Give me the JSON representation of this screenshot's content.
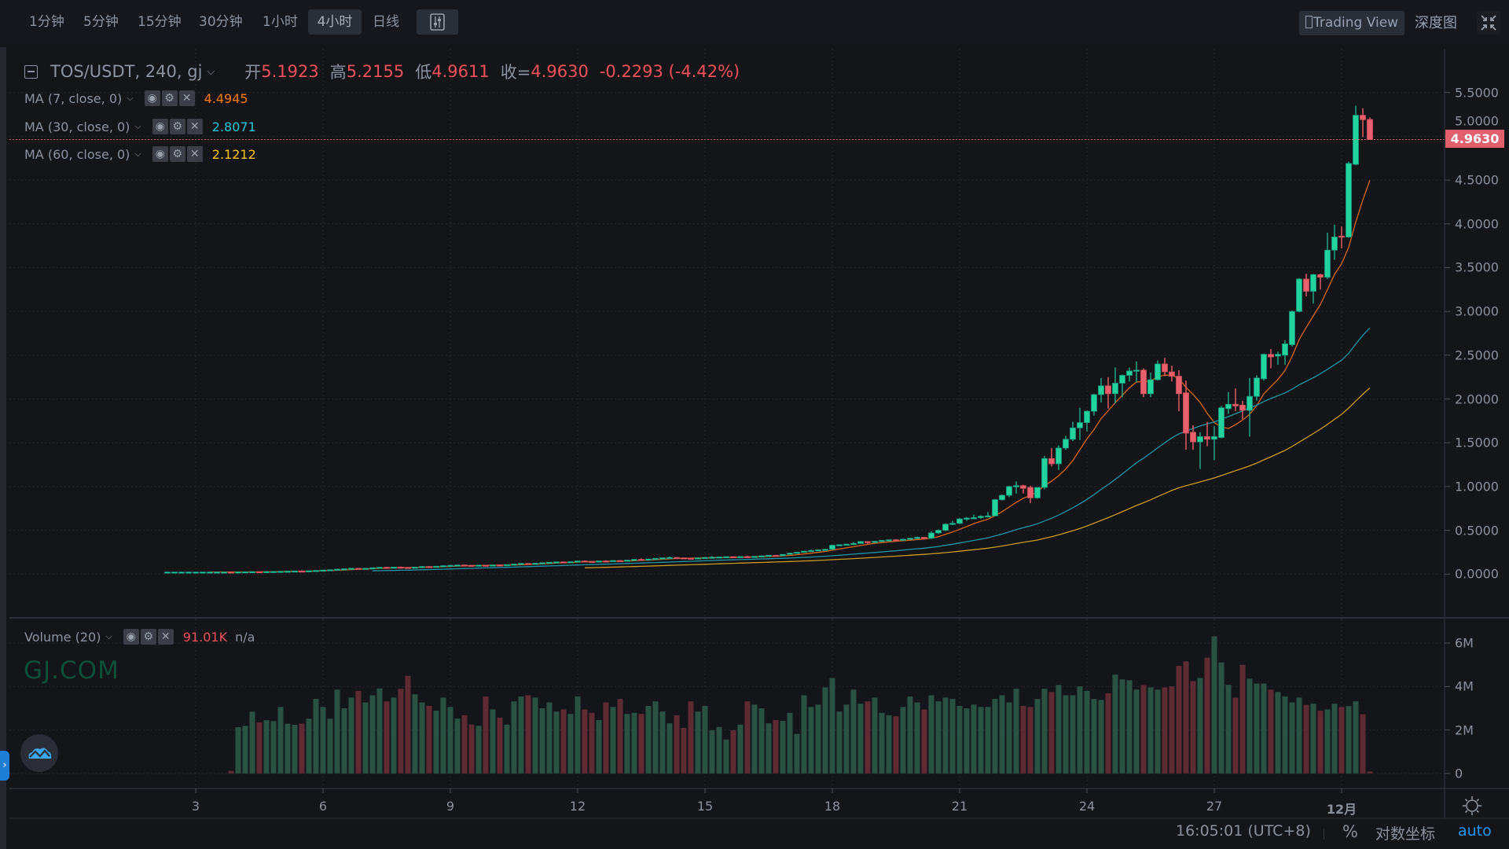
{
  "toolbar": {
    "intervals": [
      {
        "label": "1分钟"
      },
      {
        "label": "5分钟"
      },
      {
        "label": "15分钟"
      },
      {
        "label": "30分钟"
      },
      {
        "label": "1小时"
      },
      {
        "label": "4小时",
        "active": true
      },
      {
        "label": "日线"
      }
    ],
    "indicator_icon": "indicator-settings-icon",
    "tradingview_label": "Trading View",
    "depth_label": "深度图",
    "fullscreen_icon": "exit-fullscreen-icon"
  },
  "legend": {
    "symbol": "TOS/USDT, 240, gj",
    "open_label": "开",
    "open": "5.1923",
    "high_label": "高",
    "high": "5.2155",
    "low_label": "低",
    "low": "4.9611",
    "close_label": "收=",
    "close": "4.9630",
    "change": "-0.2293 (-4.42%)"
  },
  "indicators": [
    {
      "label": "MA (7, close, 0)",
      "value": "4.4945",
      "color": "#ff7a0e",
      "line_color": "#d9661a"
    },
    {
      "label": "MA (30, close, 0)",
      "value": "2.8071",
      "color": "#26c6da",
      "line_color": "#1e95a6"
    },
    {
      "label": "MA (60, close, 0)",
      "value": "2.1212",
      "color": "#ffc21a",
      "line_color": "#c99a22"
    }
  ],
  "volume_legend": {
    "label": "Volume (20)",
    "value": "91.01K",
    "value2": "n/a"
  },
  "watermark": "GJ.COM",
  "price_axis": {
    "ticks": [
      "5.5000",
      "5.0000",
      "4.5000",
      "4.0000",
      "3.5000",
      "3.0000",
      "2.5000",
      "2.0000",
      "1.5000",
      "1.0000",
      "0.5000",
      "0.0000"
    ],
    "last_price": "4.9630"
  },
  "volume_axis": [
    {
      "label": "6M",
      "value": 6
    },
    {
      "label": "4M",
      "value": 4
    },
    {
      "label": "2M",
      "value": 2
    },
    {
      "label": "0",
      "value": 0
    }
  ],
  "time_axis": [
    "3",
    "6",
    "9",
    "12",
    "15",
    "18",
    "21",
    "24",
    "27",
    "12月"
  ],
  "status_bar": {
    "time": "16:05:01 (UTC+8)",
    "percent": "%",
    "log_scale": "对数坐标",
    "auto": "auto"
  },
  "colors": {
    "up": "#22d39b",
    "down": "#e8606d",
    "volume_up": "#2a5243",
    "volume_down": "#5e2a33",
    "last_price": "#e0606e",
    "auto": "#2196f3",
    "watermark": "#0e4f38"
  },
  "chart_data": {
    "type": "candlestick",
    "x_ticks": [
      "3",
      "6",
      "9",
      "12",
      "15",
      "18",
      "21",
      "24",
      "27",
      "12月"
    ],
    "ylim": [
      -0.5,
      6.0
    ],
    "volume_ylim": [
      -0.69,
      7.16
    ],
    "grid": true,
    "candles": [
      [
        0.024,
        0.026,
        0.022,
        0.024
      ],
      [
        0.024,
        0.026,
        0.022,
        0.024
      ],
      [
        0.024,
        0.026,
        0.022,
        0.024
      ],
      [
        0.024,
        0.026,
        0.022,
        0.024
      ],
      [
        0.024,
        0.026,
        0.022,
        0.024
      ],
      [
        0.024,
        0.026,
        0.022,
        0.024
      ],
      [
        0.024,
        0.026,
        0.022,
        0.024
      ],
      [
        0.024,
        0.026,
        0.022,
        0.024
      ],
      [
        0.024,
        0.026,
        0.022,
        0.024
      ],
      [
        0.024,
        0.026,
        0.021,
        0.023
      ],
      [
        0.023,
        0.027,
        0.021,
        0.025
      ],
      [
        0.025,
        0.028,
        0.023,
        0.026
      ],
      [
        0.026,
        0.03,
        0.024,
        0.028
      ],
      [
        0.028,
        0.03,
        0.025,
        0.027
      ],
      [
        0.027,
        0.031,
        0.025,
        0.029
      ],
      [
        0.029,
        0.033,
        0.027,
        0.03
      ],
      [
        0.03,
        0.035,
        0.028,
        0.032
      ],
      [
        0.032,
        0.04,
        0.03,
        0.034
      ],
      [
        0.034,
        0.039,
        0.032,
        0.036
      ],
      [
        0.036,
        0.044,
        0.033,
        0.035
      ],
      [
        0.035,
        0.04,
        0.033,
        0.038
      ],
      [
        0.038,
        0.044,
        0.036,
        0.042
      ],
      [
        0.042,
        0.048,
        0.04,
        0.046
      ],
      [
        0.046,
        0.052,
        0.044,
        0.05
      ],
      [
        0.05,
        0.058,
        0.048,
        0.056
      ],
      [
        0.056,
        0.063,
        0.054,
        0.061
      ],
      [
        0.061,
        0.068,
        0.059,
        0.066
      ],
      [
        0.066,
        0.069,
        0.059,
        0.062
      ],
      [
        0.062,
        0.068,
        0.06,
        0.066
      ],
      [
        0.066,
        0.075,
        0.064,
        0.072
      ],
      [
        0.072,
        0.08,
        0.07,
        0.078
      ],
      [
        0.078,
        0.084,
        0.072,
        0.075
      ],
      [
        0.075,
        0.083,
        0.073,
        0.08
      ],
      [
        0.08,
        0.086,
        0.074,
        0.077
      ],
      [
        0.077,
        0.079,
        0.069,
        0.072
      ],
      [
        0.072,
        0.082,
        0.07,
        0.08
      ],
      [
        0.08,
        0.09,
        0.078,
        0.087
      ],
      [
        0.087,
        0.09,
        0.081,
        0.084
      ],
      [
        0.084,
        0.093,
        0.082,
        0.09
      ],
      [
        0.09,
        0.099,
        0.088,
        0.096
      ],
      [
        0.096,
        0.104,
        0.094,
        0.1
      ],
      [
        0.1,
        0.107,
        0.098,
        0.104
      ],
      [
        0.104,
        0.107,
        0.098,
        0.101
      ],
      [
        0.101,
        0.103,
        0.094,
        0.097
      ],
      [
        0.097,
        0.105,
        0.095,
        0.102
      ],
      [
        0.102,
        0.106,
        0.096,
        0.099
      ],
      [
        0.099,
        0.108,
        0.097,
        0.105
      ],
      [
        0.105,
        0.109,
        0.099,
        0.102
      ],
      [
        0.102,
        0.111,
        0.1,
        0.108
      ],
      [
        0.108,
        0.118,
        0.106,
        0.115
      ],
      [
        0.115,
        0.125,
        0.113,
        0.122
      ],
      [
        0.122,
        0.126,
        0.115,
        0.118
      ],
      [
        0.118,
        0.127,
        0.116,
        0.124
      ],
      [
        0.124,
        0.133,
        0.122,
        0.13
      ],
      [
        0.13,
        0.138,
        0.128,
        0.135
      ],
      [
        0.135,
        0.143,
        0.133,
        0.14
      ],
      [
        0.14,
        0.144,
        0.133,
        0.136
      ],
      [
        0.136,
        0.145,
        0.134,
        0.142
      ],
      [
        0.142,
        0.153,
        0.14,
        0.15
      ],
      [
        0.15,
        0.154,
        0.143,
        0.146
      ],
      [
        0.146,
        0.149,
        0.139,
        0.142
      ],
      [
        0.142,
        0.153,
        0.14,
        0.15
      ],
      [
        0.15,
        0.158,
        0.143,
        0.146
      ],
      [
        0.146,
        0.158,
        0.144,
        0.155
      ],
      [
        0.155,
        0.16,
        0.147,
        0.15
      ],
      [
        0.15,
        0.163,
        0.148,
        0.16
      ],
      [
        0.16,
        0.172,
        0.158,
        0.168
      ],
      [
        0.168,
        0.18,
        0.161,
        0.164
      ],
      [
        0.164,
        0.175,
        0.162,
        0.172
      ],
      [
        0.172,
        0.184,
        0.17,
        0.18
      ],
      [
        0.18,
        0.19,
        0.178,
        0.186
      ],
      [
        0.186,
        0.2,
        0.184,
        0.19
      ],
      [
        0.19,
        0.194,
        0.183,
        0.186
      ],
      [
        0.186,
        0.189,
        0.179,
        0.182
      ],
      [
        0.182,
        0.185,
        0.175,
        0.178
      ],
      [
        0.178,
        0.188,
        0.176,
        0.185
      ],
      [
        0.185,
        0.193,
        0.183,
        0.19
      ],
      [
        0.19,
        0.205,
        0.188,
        0.193
      ],
      [
        0.193,
        0.199,
        0.191,
        0.196
      ],
      [
        0.196,
        0.202,
        0.194,
        0.199
      ],
      [
        0.199,
        0.203,
        0.192,
        0.195
      ],
      [
        0.195,
        0.203,
        0.193,
        0.2
      ],
      [
        0.2,
        0.21,
        0.193,
        0.196
      ],
      [
        0.196,
        0.206,
        0.194,
        0.203
      ],
      [
        0.203,
        0.212,
        0.201,
        0.208
      ],
      [
        0.208,
        0.218,
        0.206,
        0.215
      ],
      [
        0.215,
        0.219,
        0.207,
        0.21
      ],
      [
        0.21,
        0.228,
        0.208,
        0.225
      ],
      [
        0.225,
        0.243,
        0.223,
        0.24
      ],
      [
        0.24,
        0.254,
        0.238,
        0.25
      ],
      [
        0.25,
        0.266,
        0.248,
        0.262
      ],
      [
        0.262,
        0.28,
        0.26,
        0.27
      ],
      [
        0.27,
        0.282,
        0.268,
        0.278
      ],
      [
        0.278,
        0.29,
        0.275,
        0.283
      ],
      [
        0.283,
        0.334,
        0.281,
        0.33
      ],
      [
        0.33,
        0.34,
        0.328,
        0.336
      ],
      [
        0.336,
        0.346,
        0.334,
        0.342
      ],
      [
        0.342,
        0.365,
        0.34,
        0.35
      ],
      [
        0.35,
        0.376,
        0.348,
        0.372
      ],
      [
        0.372,
        0.376,
        0.345,
        0.362
      ],
      [
        0.362,
        0.379,
        0.36,
        0.375
      ],
      [
        0.375,
        0.389,
        0.373,
        0.385
      ],
      [
        0.385,
        0.396,
        0.383,
        0.392
      ],
      [
        0.392,
        0.4,
        0.383,
        0.386
      ],
      [
        0.386,
        0.402,
        0.384,
        0.398
      ],
      [
        0.398,
        0.414,
        0.396,
        0.41
      ],
      [
        0.41,
        0.43,
        0.408,
        0.42
      ],
      [
        0.42,
        0.424,
        0.405,
        0.41
      ],
      [
        0.41,
        0.49,
        0.4,
        0.47
      ],
      [
        0.47,
        0.51,
        0.46,
        0.5
      ],
      [
        0.5,
        0.58,
        0.49,
        0.57
      ],
      [
        0.57,
        0.61,
        0.56,
        0.58
      ],
      [
        0.58,
        0.64,
        0.57,
        0.63
      ],
      [
        0.63,
        0.65,
        0.61,
        0.64
      ],
      [
        0.64,
        0.68,
        0.63,
        0.645
      ],
      [
        0.645,
        0.67,
        0.63,
        0.66
      ],
      [
        0.66,
        0.71,
        0.65,
        0.665
      ],
      [
        0.665,
        0.86,
        0.66,
        0.85
      ],
      [
        0.85,
        0.91,
        0.84,
        0.9
      ],
      [
        0.9,
        1.01,
        0.88,
        1.0
      ],
      [
        1.0,
        1.06,
        0.92,
        1.01
      ],
      [
        1.01,
        1.02,
        0.92,
        0.98
      ],
      [
        0.99,
        1.01,
        0.81,
        0.87
      ],
      [
        0.87,
        0.99,
        0.86,
        0.99
      ],
      [
        0.99,
        1.35,
        0.97,
        1.32
      ],
      [
        1.32,
        1.44,
        1.23,
        1.26
      ],
      [
        1.26,
        1.47,
        1.19,
        1.44
      ],
      [
        1.44,
        1.58,
        1.42,
        1.54
      ],
      [
        1.54,
        1.74,
        1.52,
        1.67
      ],
      [
        1.67,
        1.9,
        1.53,
        1.73
      ],
      [
        1.73,
        1.87,
        1.63,
        1.86
      ],
      [
        1.86,
        2.06,
        1.81,
        2.05
      ],
      [
        2.05,
        2.24,
        1.96,
        2.15
      ],
      [
        2.15,
        2.25,
        1.89,
        2.06
      ],
      [
        2.06,
        2.36,
        1.95,
        2.18
      ],
      [
        2.18,
        2.28,
        2.02,
        2.27
      ],
      [
        2.27,
        2.36,
        2.2,
        2.32
      ],
      [
        2.32,
        2.43,
        2.19,
        2.33
      ],
      [
        2.33,
        2.35,
        2.02,
        2.06
      ],
      [
        2.06,
        2.3,
        2.02,
        2.22
      ],
      [
        2.22,
        2.44,
        2.21,
        2.4
      ],
      [
        2.4,
        2.47,
        2.26,
        2.31
      ],
      [
        2.31,
        2.38,
        2.2,
        2.26
      ],
      [
        2.26,
        2.33,
        1.86,
        2.06
      ],
      [
        2.07,
        2.21,
        1.42,
        1.61
      ],
      [
        1.62,
        1.7,
        1.42,
        1.51
      ],
      [
        1.51,
        1.62,
        1.2,
        1.57
      ],
      [
        1.57,
        1.74,
        1.46,
        1.54
      ],
      [
        1.54,
        1.69,
        1.3,
        1.57
      ],
      [
        1.56,
        1.92,
        1.55,
        1.9
      ],
      [
        1.89,
        2.08,
        1.83,
        1.94
      ],
      [
        1.94,
        2.12,
        1.86,
        1.92
      ],
      [
        1.93,
        1.98,
        1.77,
        1.87
      ],
      [
        1.87,
        2.24,
        1.57,
        2.03
      ],
      [
        2.03,
        2.27,
        1.98,
        2.24
      ],
      [
        2.23,
        2.52,
        2.21,
        2.51
      ],
      [
        2.51,
        2.57,
        2.35,
        2.48
      ],
      [
        2.49,
        2.54,
        2.39,
        2.51
      ],
      [
        2.5,
        2.67,
        2.39,
        2.63
      ],
      [
        2.62,
        3.01,
        2.6,
        3.0
      ],
      [
        3.0,
        3.38,
        2.99,
        3.37
      ],
      [
        3.37,
        3.43,
        3.17,
        3.23
      ],
      [
        3.23,
        3.43,
        3.09,
        3.42
      ],
      [
        3.42,
        3.43,
        3.25,
        3.39
      ],
      [
        3.39,
        3.9,
        3.37,
        3.7
      ],
      [
        3.7,
        3.99,
        3.59,
        3.85
      ],
      [
        3.86,
        3.97,
        3.72,
        3.85
      ],
      [
        3.85,
        4.71,
        3.84,
        4.69
      ],
      [
        4.68,
        5.35,
        4.67,
        5.24
      ],
      [
        5.24,
        5.32,
        4.99,
        5.19
      ],
      [
        5.1923,
        5.2155,
        4.9611,
        4.963
      ]
    ],
    "volume": [
      0,
      0,
      0,
      0,
      0,
      0,
      0,
      0,
      0,
      0.12,
      2.13,
      2.19,
      2.84,
      2.35,
      2.45,
      2.41,
      3.06,
      2.29,
      2.24,
      2.3,
      2.52,
      3.43,
      3.06,
      2.52,
      3.86,
      3.0,
      3.49,
      3.8,
      3.27,
      3.6,
      3.91,
      3.32,
      3.49,
      3.9,
      4.49,
      3.64,
      3.27,
      3.11,
      2.89,
      3.49,
      3.06,
      2.52,
      2.68,
      2.25,
      2.19,
      3.54,
      2.95,
      2.57,
      2.25,
      3.32,
      3.54,
      3.6,
      3.49,
      3.0,
      3.27,
      2.85,
      2.95,
      2.74,
      3.54,
      2.95,
      2.79,
      2.46,
      3.27,
      3.06,
      3.43,
      2.74,
      2.79,
      2.74,
      3.11,
      3.32,
      2.85,
      2.31,
      2.68,
      2.1,
      3.32,
      2.85,
      3.11,
      1.99,
      2.14,
      1.56,
      1.99,
      2.25,
      3.32,
      3.17,
      3.0,
      2.31,
      2.46,
      2.42,
      2.79,
      1.82,
      3.6,
      3.06,
      3.17,
      3.96,
      4.39,
      2.85,
      3.17,
      3.86,
      3.21,
      3.32,
      3.49,
      2.79,
      2.68,
      2.63,
      3.06,
      3.54,
      3.27,
      2.95,
      3.6,
      3.32,
      3.49,
      3.43,
      3.11,
      3.0,
      3.17,
      3.06,
      3.06,
      3.43,
      3.6,
      3.27,
      3.9,
      3.11,
      3.06,
      3.43,
      3.9,
      3.75,
      4.07,
      3.6,
      3.6,
      4.01,
      3.8,
      3.43,
      3.38,
      3.69,
      4.55,
      4.33,
      4.29,
      3.86,
      4.07,
      3.96,
      3.86,
      3.96,
      4.01,
      4.95,
      5.16,
      4.25,
      4.4,
      5.33,
      6.31,
      5.11,
      4.08,
      3.49,
      5.0,
      4.36,
      4.14,
      4.14,
      3.86,
      3.75,
      3.54,
      3.27,
      3.49,
      3.16,
      3.21,
      2.89,
      2.95,
      3.21,
      3.06,
      3.1,
      3.32,
      2.73,
      0.09
    ]
  }
}
